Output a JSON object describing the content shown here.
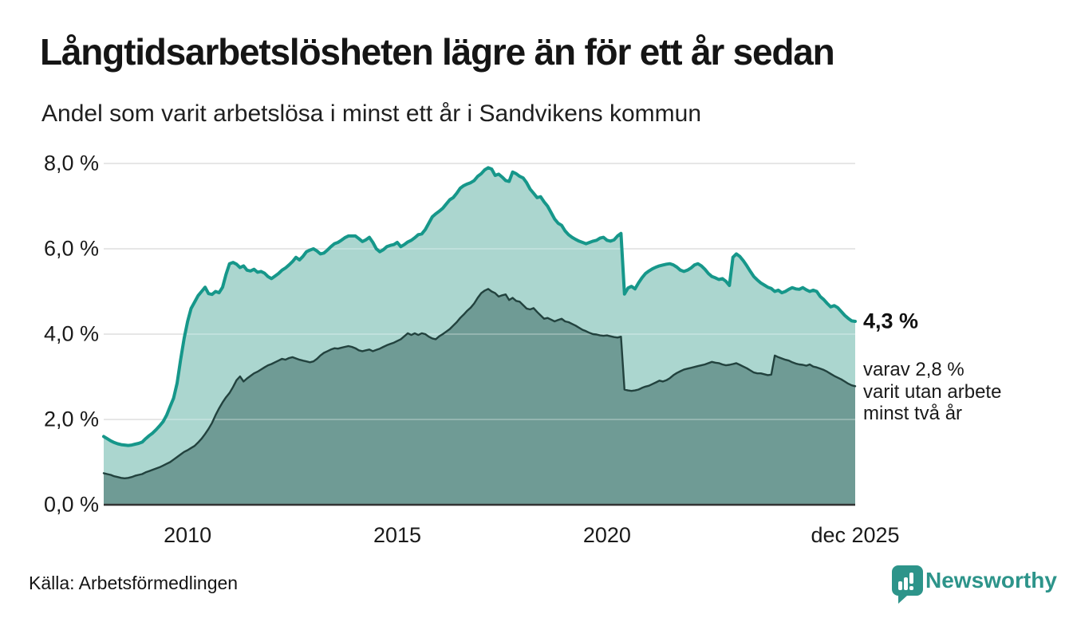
{
  "header": {
    "title": "Långtidsarbetslösheten lägre än för ett år sedan",
    "subtitle": "Andel som varit arbetslösa i minst ett år i Sandvikens kommun"
  },
  "annotations": {
    "latest_value": "4,3 %",
    "note_lines": [
      "varav 2,8 %",
      "varit utan arbete",
      "minst två år"
    ]
  },
  "source": {
    "label": "Källa: Arbetsförmedlingen"
  },
  "logo": {
    "brand": "Newsworthy",
    "color": "#2d948a"
  },
  "colors": {
    "line_total": "#16978a",
    "fill_total": "#abd6cf",
    "line_two_years": "#22423e",
    "fill_two_years": "#6f9b95",
    "gridline": "#dedede",
    "axis": "#333333"
  },
  "chart_data": {
    "type": "area",
    "title": "Långtidsarbetslösheten lägre än för ett år sedan",
    "subtitle": "Andel som varit arbetslösa i minst ett år i Sandvikens kommun",
    "x_start": "2008-01",
    "x_end": "2025-12",
    "frequency": "monthly",
    "ylim": [
      0,
      8.3
    ],
    "grid": true,
    "y_ticks": [
      {
        "value": 0,
        "label": "0,0 %"
      },
      {
        "value": 2,
        "label": "2,0 %"
      },
      {
        "value": 4,
        "label": "4,0 %"
      },
      {
        "value": 6,
        "label": "6,0 %"
      },
      {
        "value": 8,
        "label": "8,0 %"
      }
    ],
    "x_ticks": [
      {
        "month_index": 24,
        "label": "2010"
      },
      {
        "month_index": 84,
        "label": "2015"
      },
      {
        "month_index": 144,
        "label": "2020"
      },
      {
        "month_index": 215,
        "label": "dec 2025"
      }
    ],
    "series": [
      {
        "name": "Andel som varit arbetslösa minst ett år",
        "color": "#16978a",
        "fill": "#abd6cf",
        "last_label": "4,3 %",
        "values": [
          1.6,
          1.55,
          1.5,
          1.46,
          1.43,
          1.41,
          1.4,
          1.39,
          1.4,
          1.42,
          1.44,
          1.47,
          1.55,
          1.62,
          1.68,
          1.76,
          1.85,
          1.95,
          2.1,
          2.3,
          2.5,
          2.85,
          3.4,
          3.9,
          4.3,
          4.6,
          4.75,
          4.9,
          5.0,
          5.1,
          4.95,
          4.93,
          5.0,
          4.97,
          5.1,
          5.4,
          5.65,
          5.68,
          5.64,
          5.56,
          5.6,
          5.5,
          5.48,
          5.52,
          5.45,
          5.47,
          5.43,
          5.35,
          5.3,
          5.36,
          5.42,
          5.5,
          5.55,
          5.62,
          5.7,
          5.8,
          5.74,
          5.82,
          5.93,
          5.97,
          6.0,
          5.95,
          5.88,
          5.9,
          5.97,
          6.05,
          6.12,
          6.15,
          6.2,
          6.26,
          6.3,
          6.3,
          6.3,
          6.24,
          6.17,
          6.21,
          6.27,
          6.15,
          6.0,
          5.93,
          5.98,
          6.05,
          6.08,
          6.1,
          6.15,
          6.05,
          6.1,
          6.16,
          6.2,
          6.26,
          6.33,
          6.35,
          6.45,
          6.6,
          6.75,
          6.82,
          6.88,
          6.95,
          7.05,
          7.15,
          7.2,
          7.3,
          7.42,
          7.48,
          7.52,
          7.55,
          7.6,
          7.7,
          7.76,
          7.85,
          7.9,
          7.87,
          7.72,
          7.75,
          7.68,
          7.6,
          7.58,
          7.8,
          7.76,
          7.7,
          7.66,
          7.55,
          7.4,
          7.3,
          7.2,
          7.22,
          7.1,
          7.0,
          6.85,
          6.7,
          6.6,
          6.55,
          6.42,
          6.33,
          6.27,
          6.22,
          6.18,
          6.15,
          6.12,
          6.15,
          6.18,
          6.2,
          6.25,
          6.27,
          6.2,
          6.18,
          6.21,
          6.3,
          6.36,
          4.94,
          5.08,
          5.12,
          5.06,
          5.2,
          5.32,
          5.42,
          5.48,
          5.53,
          5.57,
          5.6,
          5.62,
          5.64,
          5.65,
          5.62,
          5.57,
          5.5,
          5.47,
          5.5,
          5.55,
          5.62,
          5.65,
          5.6,
          5.52,
          5.42,
          5.35,
          5.32,
          5.28,
          5.3,
          5.24,
          5.14,
          5.8,
          5.88,
          5.82,
          5.72,
          5.6,
          5.47,
          5.35,
          5.27,
          5.2,
          5.15,
          5.1,
          5.07,
          5.0,
          5.03,
          4.97,
          5.0,
          5.05,
          5.09,
          5.06,
          5.05,
          5.09,
          5.04,
          5.0,
          5.03,
          5.0,
          4.88,
          4.81,
          4.72,
          4.64,
          4.67,
          4.62,
          4.53,
          4.44,
          4.37,
          4.31,
          4.3
        ]
      },
      {
        "name": "Andel som varit utan arbete minst två år",
        "color": "#22423e",
        "fill": "#6f9b95",
        "last_label": "2,8 %",
        "values": [
          0.74,
          0.72,
          0.7,
          0.67,
          0.65,
          0.63,
          0.62,
          0.63,
          0.65,
          0.68,
          0.7,
          0.72,
          0.76,
          0.79,
          0.82,
          0.85,
          0.88,
          0.92,
          0.96,
          1.0,
          1.06,
          1.12,
          1.18,
          1.24,
          1.28,
          1.33,
          1.38,
          1.46,
          1.55,
          1.66,
          1.78,
          1.92,
          2.1,
          2.26,
          2.4,
          2.52,
          2.62,
          2.76,
          2.92,
          3.01,
          2.89,
          2.96,
          3.02,
          3.08,
          3.12,
          3.17,
          3.22,
          3.27,
          3.3,
          3.34,
          3.38,
          3.42,
          3.4,
          3.44,
          3.46,
          3.43,
          3.4,
          3.38,
          3.36,
          3.34,
          3.36,
          3.42,
          3.5,
          3.56,
          3.6,
          3.64,
          3.67,
          3.66,
          3.68,
          3.7,
          3.72,
          3.7,
          3.67,
          3.62,
          3.6,
          3.62,
          3.64,
          3.6,
          3.63,
          3.66,
          3.7,
          3.74,
          3.77,
          3.8,
          3.84,
          3.88,
          3.95,
          4.02,
          3.98,
          4.02,
          3.98,
          4.02,
          4.0,
          3.94,
          3.9,
          3.88,
          3.95,
          4.0,
          4.06,
          4.12,
          4.2,
          4.28,
          4.38,
          4.46,
          4.55,
          4.62,
          4.72,
          4.85,
          4.96,
          5.02,
          5.06,
          5.0,
          4.96,
          4.88,
          4.91,
          4.93,
          4.8,
          4.85,
          4.78,
          4.76,
          4.68,
          4.6,
          4.58,
          4.61,
          4.52,
          4.44,
          4.36,
          4.38,
          4.34,
          4.3,
          4.33,
          4.36,
          4.3,
          4.28,
          4.24,
          4.2,
          4.15,
          4.1,
          4.07,
          4.03,
          4.0,
          3.99,
          3.97,
          3.96,
          3.97,
          3.95,
          3.93,
          3.92,
          3.94,
          2.7,
          2.68,
          2.67,
          2.68,
          2.7,
          2.74,
          2.77,
          2.79,
          2.83,
          2.87,
          2.91,
          2.89,
          2.92,
          2.97,
          3.04,
          3.09,
          3.13,
          3.17,
          3.19,
          3.21,
          3.23,
          3.25,
          3.27,
          3.29,
          3.32,
          3.35,
          3.33,
          3.32,
          3.29,
          3.27,
          3.28,
          3.3,
          3.32,
          3.28,
          3.24,
          3.2,
          3.15,
          3.1,
          3.08,
          3.08,
          3.06,
          3.04,
          3.05,
          3.5,
          3.46,
          3.43,
          3.4,
          3.38,
          3.34,
          3.31,
          3.29,
          3.28,
          3.26,
          3.29,
          3.24,
          3.22,
          3.19,
          3.16,
          3.12,
          3.07,
          3.02,
          2.98,
          2.94,
          2.89,
          2.84,
          2.8,
          2.78
        ]
      }
    ]
  }
}
